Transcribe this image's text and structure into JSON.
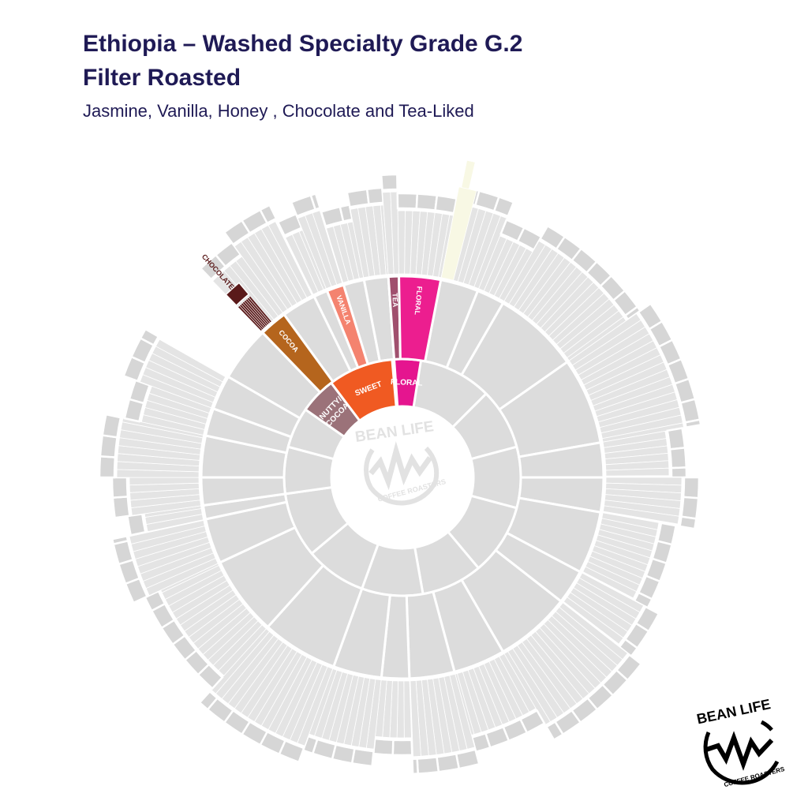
{
  "header": {
    "title_line1": "Ethiopia – Washed Specialty Grade G.2",
    "title_line2": "Filter Roasted",
    "subtitle": "Jasmine, Vanilla, Honey , Chocolate and Tea-Liked"
  },
  "wheel": {
    "inner": [
      {
        "lines": [
          "NUTTY/",
          "COCOA"
        ],
        "color": "#9b7279"
      },
      {
        "lines": [
          "SWEET"
        ],
        "color": "#f05a22"
      },
      {
        "lines": [
          "FLORAL"
        ],
        "color": "#e5158f"
      }
    ],
    "middle": [
      {
        "lines": [
          "COCOA"
        ],
        "color": "#b5651d"
      },
      {
        "lines": [
          "VANILLA"
        ],
        "color": "#f4836f"
      },
      {
        "lines": [
          "TEA"
        ],
        "color": "#a0506e"
      },
      {
        "lines": [
          "FLORAL"
        ],
        "color": "#ec1e8f"
      }
    ],
    "outer": [
      {
        "lines": [
          "CHOCOLATE"
        ],
        "color": "#5a1a1a"
      }
    ]
  },
  "logo": {
    "top": "BEAN LIFE",
    "bottom": "COFFEE ROASTERS"
  }
}
